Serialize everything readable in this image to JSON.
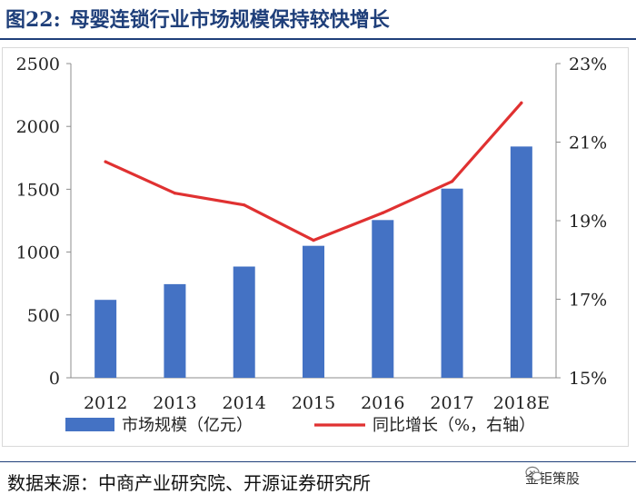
{
  "header": {
    "figure_label": "图22:",
    "title": "母婴连锁行业市场规模保持较快增长"
  },
  "chart_data": {
    "type": "bar",
    "categories": [
      "2012",
      "2013",
      "2014",
      "2015",
      "2016",
      "2017",
      "2018E"
    ],
    "series": [
      {
        "name": "市场规模（亿元）",
        "type": "bar",
        "axis": "left",
        "color": "#4472c4",
        "values": [
          620,
          745,
          885,
          1050,
          1255,
          1505,
          1840
        ]
      },
      {
        "name": "同比增长（%，右轴）",
        "type": "line",
        "axis": "right",
        "color": "#e03131",
        "values": [
          20.5,
          19.7,
          19.4,
          18.5,
          19.2,
          20.0,
          22.0
        ]
      }
    ],
    "y_left": {
      "min": 0,
      "max": 2500,
      "step": 500,
      "tick_labels": [
        "0",
        "500",
        "1000",
        "1500",
        "2000",
        "2500"
      ]
    },
    "y_right": {
      "min": 15,
      "max": 23,
      "step": 2,
      "tick_labels": [
        "15%",
        "17%",
        "19%",
        "21%",
        "23%"
      ]
    },
    "grid": false,
    "legend_position": "bottom"
  },
  "footer": {
    "source": "数据来源：中商产业研究院、开源证券研究所",
    "watermark_text": "金钜策股",
    "watermark_icon": "wechat-icon"
  }
}
